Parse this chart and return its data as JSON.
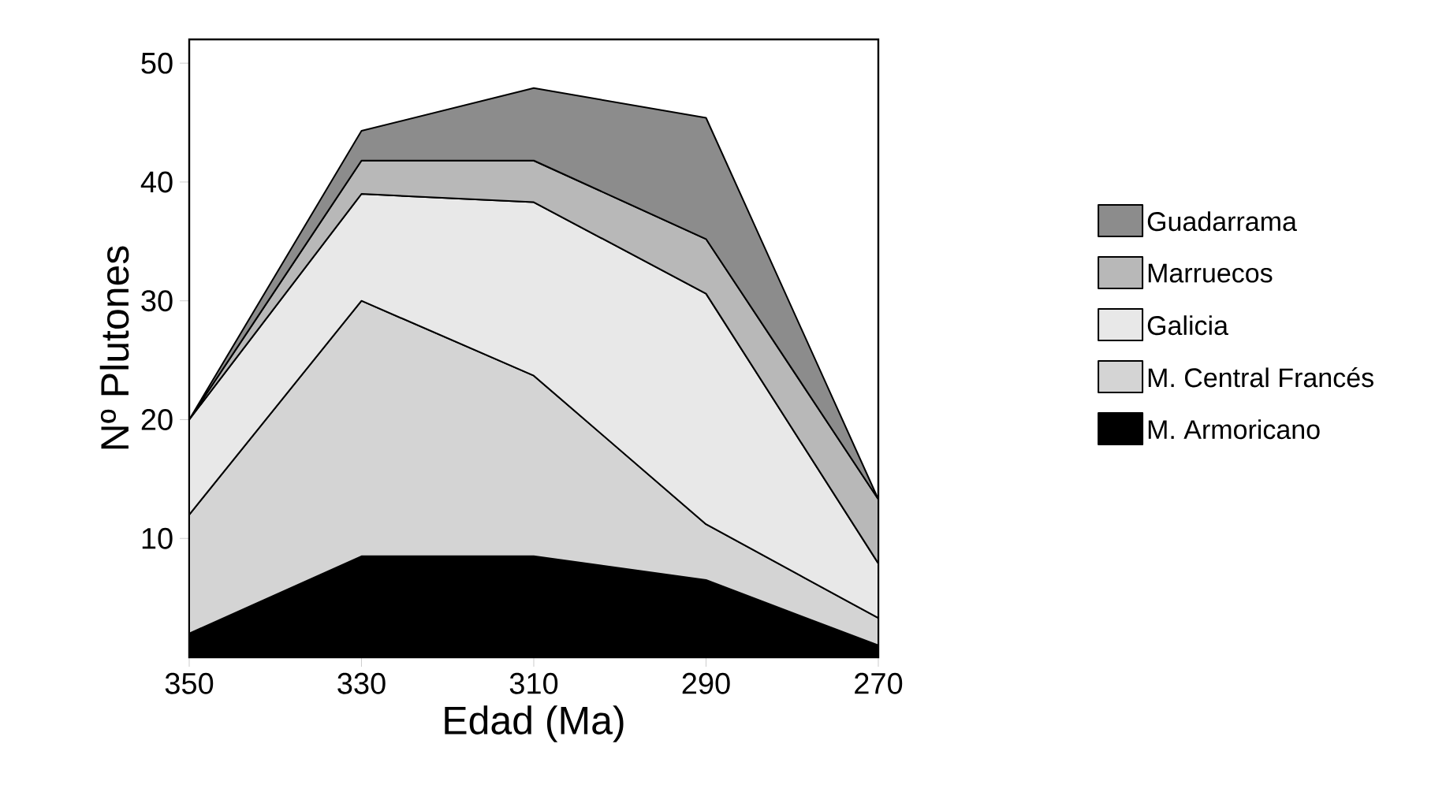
{
  "chart_data": {
    "type": "area",
    "stacked": true,
    "xlabel": "Edad (Ma)",
    "ylabel": "Nº Plutones",
    "x": [
      350,
      330,
      310,
      290,
      270
    ],
    "xlim": [
      350,
      270
    ],
    "ylim": [
      0,
      52
    ],
    "xticks": [
      350,
      330,
      310,
      290,
      270
    ],
    "yticks": [
      10,
      20,
      30,
      40,
      50
    ],
    "grid": false,
    "legend": "right",
    "marker": "none",
    "series": [
      {
        "name": "M. Armoricano",
        "color": "#000000",
        "values": [
          2,
          8.5,
          8.5,
          6.5,
          1
        ]
      },
      {
        "name": "M. Central Francés",
        "color": "#d4d4d4",
        "values": [
          10,
          21.5,
          15.2,
          4.7,
          2.3
        ]
      },
      {
        "name": "Galicia",
        "color": "#e8e8e8",
        "values": [
          8,
          9,
          14.6,
          19.4,
          4.6
        ]
      },
      {
        "name": "Marruecos",
        "color": "#b8b8b8",
        "values": [
          0,
          2.8,
          3.5,
          4.6,
          5.4
        ]
      },
      {
        "name": "Guadarrama",
        "color": "#8c8c8c",
        "values": [
          0,
          2.5,
          6.1,
          10.2,
          0
        ]
      }
    ]
  }
}
